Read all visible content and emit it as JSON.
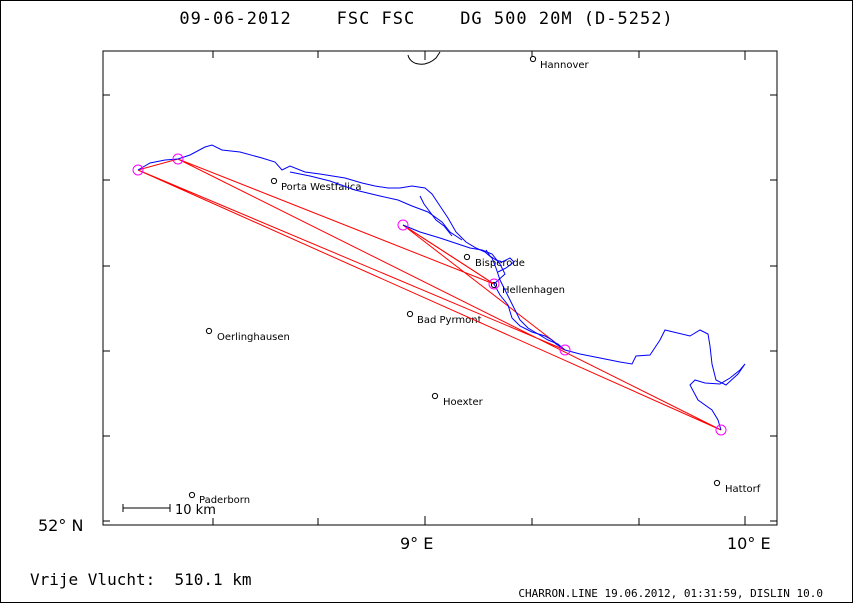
{
  "header": {
    "title": "09-06-2012    FSC FSC    DG 500 20M (D-5252)"
  },
  "map": {
    "lat_label": "52° N",
    "lon_labels": [
      "9° E",
      "10° E"
    ],
    "scale_bar_label": "10 km",
    "places": [
      {
        "name": "Hannover"
      },
      {
        "name": "Porta Westfalica"
      },
      {
        "name": "Bisperode"
      },
      {
        "name": "Hellenhagen"
      },
      {
        "name": "Bad Pyrmont"
      },
      {
        "name": "Oerlinghausen"
      },
      {
        "name": "Hoexter"
      },
      {
        "name": "Paderborn"
      },
      {
        "name": "Hattorf"
      }
    ],
    "colors": {
      "track": "#0000ff",
      "task_legs": "#ff0000",
      "turnpoints": "#ff00ff"
    }
  },
  "footer": {
    "distance_label": "Vrije Vlucht:  510.1 km",
    "software_info": "CHARRON.LINE 19.06.2012, 01:31:59, DISLIN 10.0"
  }
}
